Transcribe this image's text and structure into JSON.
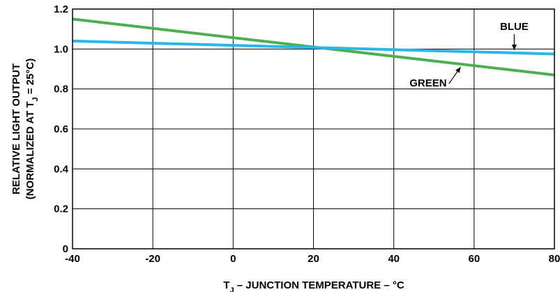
{
  "chart_data": {
    "type": "line",
    "xlabel": "T_J – JUNCTION TEMPERATURE – °C",
    "xlabel_main": "T",
    "xlabel_sub": "J",
    "xlabel_rest": " – JUNCTION TEMPERATURE – °C",
    "ylabel_line1": "RELATIVE LIGHT OUTPUT",
    "ylabel_line2_pre": "(NORMALIZED AT T",
    "ylabel_line2_sub": "J",
    "ylabel_line2_post": " = 25°C)",
    "xlim": [
      -40,
      80
    ],
    "ylim": [
      0,
      1.2
    ],
    "x_ticks": [
      -40,
      -20,
      0,
      20,
      40,
      60,
      80
    ],
    "x_tick_labels": [
      "-40",
      "-20",
      "0",
      "20",
      "40",
      "60",
      "80"
    ],
    "y_ticks": [
      0,
      0.2,
      0.4,
      0.6,
      0.8,
      1.0,
      1.2
    ],
    "y_tick_labels": [
      "0",
      "0.2",
      "0.4",
      "0.6",
      "0.8",
      "1.0",
      "1.2"
    ],
    "grid": true,
    "series": [
      {
        "name": "GREEN",
        "color": "#4caf50",
        "x": [
          -40,
          80
        ],
        "y": [
          1.15,
          0.87
        ]
      },
      {
        "name": "BLUE",
        "color": "#29b6e8",
        "x": [
          -40,
          80
        ],
        "y": [
          1.04,
          0.975
        ]
      }
    ],
    "annotations": [
      {
        "text": "BLUE",
        "series": "BLUE"
      },
      {
        "text": "GREEN",
        "series": "GREEN"
      }
    ]
  }
}
